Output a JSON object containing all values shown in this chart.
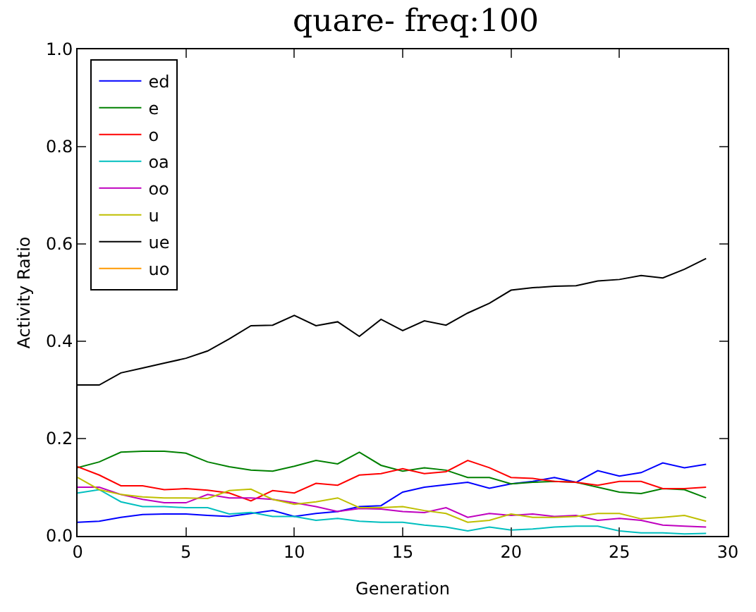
{
  "chart_data": {
    "type": "line",
    "title": "quare- freq:100",
    "xlabel": "Generation",
    "ylabel": "Activity Ratio",
    "x": [
      0,
      1,
      2,
      3,
      4,
      5,
      6,
      7,
      8,
      9,
      10,
      11,
      12,
      13,
      14,
      15,
      16,
      17,
      18,
      19,
      20,
      21,
      22,
      23,
      24,
      25,
      26,
      27,
      28,
      29
    ],
    "xlim": [
      0,
      30
    ],
    "xticks": [
      0,
      5,
      10,
      15,
      20,
      25,
      30
    ],
    "ylim": [
      0,
      1
    ],
    "yticks": [
      {
        "value": 0,
        "label": "0.0"
      },
      {
        "value": 0.2,
        "label": "0.2"
      },
      {
        "value": 0.4,
        "label": "0.4"
      },
      {
        "value": 0.6,
        "label": "0.6"
      },
      {
        "value": 0.8,
        "label": "0.8"
      },
      {
        "value": 1,
        "label": "1.0"
      }
    ],
    "legend": "top left",
    "marker": "none",
    "line_style": "solid",
    "series": [
      {
        "name": "ed",
        "color": "#0000ff",
        "values": [
          0.028,
          0.03,
          0.038,
          0.044,
          0.045,
          0.045,
          0.042,
          0.04,
          0.046,
          0.052,
          0.04,
          0.046,
          0.05,
          0.06,
          0.062,
          0.09,
          0.1,
          0.105,
          0.11,
          0.098,
          0.107,
          0.112,
          0.12,
          0.11,
          0.134,
          0.123,
          0.13,
          0.15,
          0.14,
          0.147
        ]
      },
      {
        "name": "e",
        "color": "#008000",
        "values": [
          0.14,
          0.152,
          0.172,
          0.174,
          0.174,
          0.17,
          0.152,
          0.142,
          0.135,
          0.133,
          0.143,
          0.155,
          0.148,
          0.172,
          0.145,
          0.133,
          0.14,
          0.135,
          0.12,
          0.12,
          0.107,
          0.11,
          0.112,
          0.11,
          0.1,
          0.09,
          0.087,
          0.097,
          0.095,
          0.078
        ]
      },
      {
        "name": "o",
        "color": "#ff0000",
        "values": [
          0.142,
          0.125,
          0.103,
          0.103,
          0.095,
          0.097,
          0.094,
          0.088,
          0.072,
          0.093,
          0.088,
          0.108,
          0.104,
          0.125,
          0.128,
          0.138,
          0.128,
          0.132,
          0.155,
          0.14,
          0.12,
          0.118,
          0.112,
          0.11,
          0.104,
          0.112,
          0.112,
          0.097,
          0.097,
          0.1
        ]
      },
      {
        "name": "oa",
        "color": "#00bfbf",
        "values": [
          0.088,
          0.095,
          0.07,
          0.06,
          0.06,
          0.058,
          0.058,
          0.045,
          0.048,
          0.04,
          0.04,
          0.032,
          0.036,
          0.03,
          0.028,
          0.028,
          0.022,
          0.018,
          0.01,
          0.018,
          0.012,
          0.014,
          0.018,
          0.02,
          0.02,
          0.01,
          0.006,
          0.006,
          0.004,
          0.005
        ]
      },
      {
        "name": "oo",
        "color": "#bf00bf",
        "values": [
          0.1,
          0.1,
          0.085,
          0.075,
          0.068,
          0.068,
          0.085,
          0.078,
          0.078,
          0.075,
          0.068,
          0.06,
          0.05,
          0.056,
          0.055,
          0.05,
          0.048,
          0.058,
          0.038,
          0.046,
          0.042,
          0.045,
          0.04,
          0.042,
          0.032,
          0.036,
          0.032,
          0.022,
          0.02,
          0.018
        ]
      },
      {
        "name": "u",
        "color": "#bfbf00",
        "values": [
          0.12,
          0.095,
          0.085,
          0.08,
          0.078,
          0.078,
          0.077,
          0.093,
          0.096,
          0.075,
          0.065,
          0.07,
          0.078,
          0.058,
          0.058,
          0.06,
          0.052,
          0.046,
          0.028,
          0.032,
          0.045,
          0.038,
          0.038,
          0.04,
          0.046,
          0.046,
          0.035,
          0.038,
          0.042,
          0.03
        ]
      },
      {
        "name": "ue",
        "color": "#000000",
        "values": [
          0.31,
          0.31,
          0.335,
          0.345,
          0.355,
          0.365,
          0.38,
          0.405,
          0.432,
          0.433,
          0.453,
          0.432,
          0.44,
          0.41,
          0.445,
          0.422,
          0.442,
          0.433,
          0.458,
          0.478,
          0.505,
          0.51,
          0.513,
          0.514,
          0.524,
          0.527,
          0.535,
          0.53,
          0.548,
          0.57
        ]
      },
      {
        "name": "uo",
        "color": "#ff9900",
        "values": [
          null,
          null,
          null,
          null,
          null,
          null,
          null,
          null,
          null,
          null,
          null,
          null,
          null,
          null,
          null,
          null,
          null,
          null,
          null,
          null,
          null,
          null,
          null,
          null,
          null,
          null,
          null,
          null,
          null,
          null
        ]
      }
    ]
  }
}
